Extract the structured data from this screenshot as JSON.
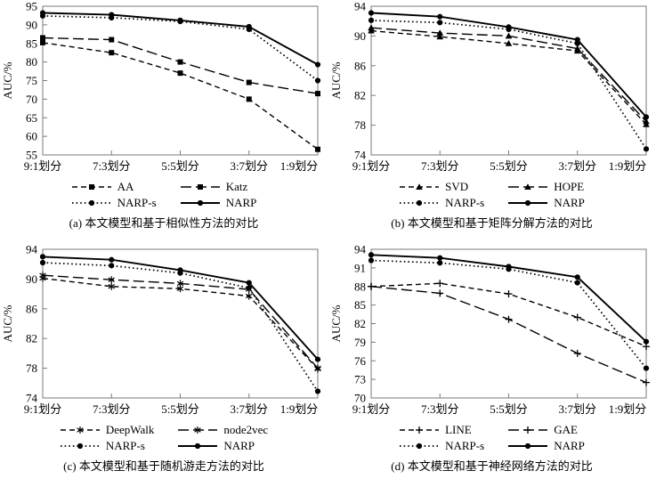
{
  "page": {
    "background": "#ffffff",
    "line_color": "#000000",
    "axis_color": "#7a7a7a"
  },
  "chart_data": [
    {
      "id": "a",
      "type": "line",
      "caption": "(a) 本文模型和基于相似性方法的对比",
      "ylabel": "AUC/%",
      "xlabel": "",
      "categories": [
        "9:1划分",
        "7:3划分",
        "5:5划分",
        "3:7划分",
        "1:9划分"
      ],
      "ylim": [
        55,
        95
      ],
      "ytick_step": 5,
      "grid": false,
      "legend_position": "bottom",
      "series": [
        {
          "name": "AA",
          "line": "short-dash",
          "marker": "square",
          "values": [
            85.2,
            82.5,
            77.0,
            70.0,
            56.5
          ]
        },
        {
          "name": "Katz",
          "line": "long-dash",
          "marker": "square",
          "values": [
            86.5,
            86.0,
            80.0,
            74.5,
            71.5
          ]
        },
        {
          "name": "NARP-s",
          "line": "dotted",
          "marker": "circle",
          "values": [
            92.4,
            91.9,
            90.9,
            88.8,
            75.0
          ]
        },
        {
          "name": "NARP",
          "line": "solid",
          "marker": "circle",
          "values": [
            93.2,
            92.7,
            91.2,
            89.5,
            79.3
          ]
        }
      ]
    },
    {
      "id": "b",
      "type": "line",
      "caption": "(b) 本文模型和基于矩阵分解方法的对比",
      "ylabel": "AUC/%",
      "xlabel": "",
      "categories": [
        "9:1划分",
        "7:3划分",
        "5:5划分",
        "3:7划分",
        "1:9划分"
      ],
      "ylim": [
        74,
        94
      ],
      "ytick_step": 4,
      "grid": false,
      "legend_position": "bottom",
      "series": [
        {
          "name": "SVD",
          "line": "short-dash",
          "marker": "triangle",
          "values": [
            90.7,
            89.9,
            89.0,
            88.0,
            78.1
          ]
        },
        {
          "name": "HOPE",
          "line": "long-dash",
          "marker": "triangle",
          "values": [
            91.1,
            90.4,
            90.0,
            88.3,
            78.5
          ]
        },
        {
          "name": "NARP-s",
          "line": "dotted",
          "marker": "circle",
          "values": [
            92.1,
            91.8,
            90.9,
            89.0,
            74.8
          ]
        },
        {
          "name": "NARP",
          "line": "solid",
          "marker": "circle",
          "values": [
            93.1,
            92.6,
            91.2,
            89.5,
            79.1
          ]
        }
      ]
    },
    {
      "id": "c",
      "type": "line",
      "caption": "(c) 本文模型和基于随机游走方法的对比",
      "ylabel": "AUC/%",
      "xlabel": "",
      "categories": [
        "9:1划分",
        "7:3划分",
        "5:5划分",
        "3:7划分",
        "1:9划分"
      ],
      "ylim": [
        74,
        94
      ],
      "ytick_step": 4,
      "grid": false,
      "legend_position": "bottom",
      "series": [
        {
          "name": "DeepWalk",
          "line": "short-dash",
          "marker": "asterisk",
          "values": [
            90.1,
            89.0,
            88.7,
            87.7,
            77.9
          ]
        },
        {
          "name": "node2vec",
          "line": "long-dash",
          "marker": "asterisk",
          "values": [
            90.5,
            89.9,
            89.4,
            88.6,
            78.0
          ]
        },
        {
          "name": "NARP-s",
          "line": "dotted",
          "marker": "circle",
          "values": [
            92.2,
            91.8,
            90.8,
            88.8,
            74.9
          ]
        },
        {
          "name": "NARP",
          "line": "solid",
          "marker": "circle",
          "values": [
            93.0,
            92.6,
            91.2,
            89.5,
            79.2
          ]
        }
      ]
    },
    {
      "id": "d",
      "type": "line",
      "caption": "(d) 本文模型和基于神经网络方法的对比",
      "ylabel": "AUC/%",
      "xlabel": "",
      "categories": [
        "9:1划分",
        "7:3划分",
        "5:5划分",
        "3:7划分",
        "1:9划分"
      ],
      "ylim": [
        70,
        94
      ],
      "ytick_step": 3,
      "grid": false,
      "legend_position": "bottom",
      "series": [
        {
          "name": "LINE",
          "line": "short-dash",
          "marker": "plus",
          "values": [
            88.0,
            88.5,
            86.8,
            83.0,
            78.3
          ]
        },
        {
          "name": "GAE",
          "line": "long-dash",
          "marker": "plus",
          "values": [
            88.0,
            86.9,
            82.7,
            77.2,
            72.5
          ]
        },
        {
          "name": "NARP-s",
          "line": "dotted",
          "marker": "circle",
          "values": [
            92.2,
            91.8,
            90.8,
            88.6,
            74.8
          ]
        },
        {
          "name": "NARP",
          "line": "solid",
          "marker": "circle",
          "values": [
            93.1,
            92.6,
            91.2,
            89.5,
            79.1
          ]
        }
      ]
    }
  ]
}
